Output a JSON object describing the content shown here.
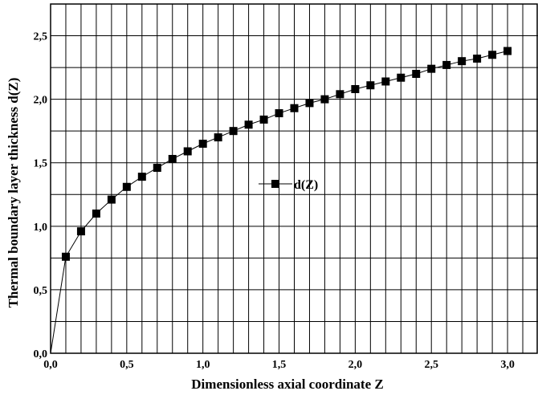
{
  "chart_data": {
    "type": "line",
    "title": "",
    "xlabel": "Dimensionless axial coordinate Z",
    "ylabel": "Thermal boundary layer thickness d(Z)",
    "xlim": [
      0,
      3.2
    ],
    "ylim": [
      0,
      2.75
    ],
    "x_ticks": [
      {
        "value": 0.0,
        "label": "0,0"
      },
      {
        "value": 0.5,
        "label": "0,5"
      },
      {
        "value": 1.0,
        "label": "1,0"
      },
      {
        "value": 1.5,
        "label": "1,5"
      },
      {
        "value": 2.0,
        "label": "2,0"
      },
      {
        "value": 2.5,
        "label": "2,5"
      },
      {
        "value": 3.0,
        "label": "3,0"
      }
    ],
    "y_ticks": [
      {
        "value": 0.0,
        "label": "0,0"
      },
      {
        "value": 0.5,
        "label": "0,5"
      },
      {
        "value": 1.0,
        "label": "1,0"
      },
      {
        "value": 1.5,
        "label": "1,5"
      },
      {
        "value": 2.0,
        "label": "2,0"
      },
      {
        "value": 2.5,
        "label": "2,5"
      }
    ],
    "grid": true,
    "legend_position": "center",
    "series": [
      {
        "name": "d(Z)",
        "color": "#000000",
        "marker": "square",
        "x": [
          0.0,
          0.1,
          0.2,
          0.3,
          0.4,
          0.5,
          0.6,
          0.7,
          0.8,
          0.9,
          1.0,
          1.1,
          1.2,
          1.3,
          1.4,
          1.5,
          1.6,
          1.7,
          1.8,
          1.9,
          2.0,
          2.1,
          2.2,
          2.3,
          2.4,
          2.5,
          2.6,
          2.7,
          2.8,
          2.9,
          3.0
        ],
        "y": [
          0.0,
          0.76,
          0.96,
          1.1,
          1.21,
          1.31,
          1.39,
          1.46,
          1.53,
          1.59,
          1.65,
          1.7,
          1.75,
          1.8,
          1.84,
          1.89,
          1.93,
          1.97,
          2.0,
          2.04,
          2.08,
          2.11,
          2.14,
          2.17,
          2.2,
          2.24,
          2.27,
          2.3,
          2.32,
          2.35,
          2.38
        ]
      }
    ]
  }
}
